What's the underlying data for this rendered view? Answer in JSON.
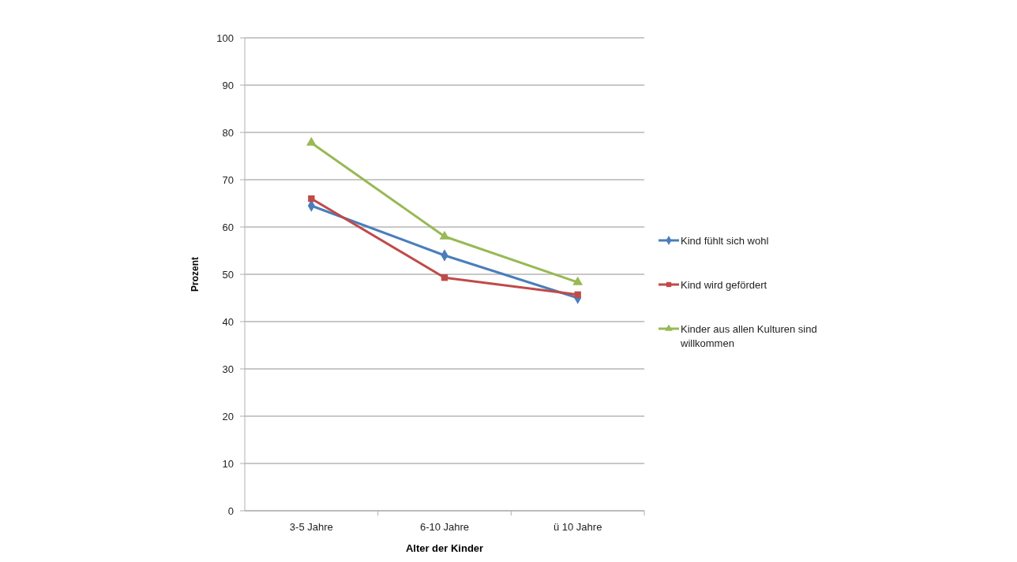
{
  "chart_data": {
    "type": "line",
    "xlabel": "Alter der Kinder",
    "ylabel": "Prozent",
    "categories": [
      "3-5 Jahre",
      "6-10 Jahre",
      "ü 10 Jahre"
    ],
    "series": [
      {
        "name": "Kind fühlt sich wohl",
        "color": "#4a7ebb",
        "marker": "diamond",
        "values": [
          64.5,
          54,
          45
        ]
      },
      {
        "name": "Kind wird gefördert",
        "color": "#be4b48",
        "marker": "square",
        "values": [
          66,
          49.3,
          45.7
        ]
      },
      {
        "name": "Kinder aus allen Kulturen sind willkommen",
        "color": "#98b954",
        "marker": "triangle",
        "values": [
          77.8,
          58,
          48.3
        ]
      }
    ],
    "ylim": [
      0,
      100
    ],
    "yticks": [
      0,
      10,
      20,
      30,
      40,
      50,
      60,
      70,
      80,
      90,
      100
    ],
    "grid": "y",
    "legend": "right"
  }
}
